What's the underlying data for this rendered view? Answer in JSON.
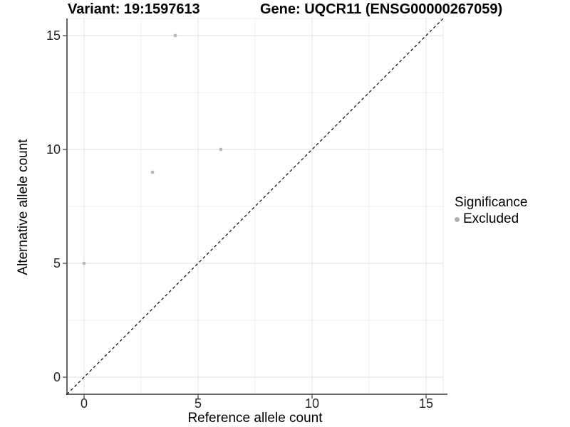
{
  "figure": {
    "title_left": "Variant: 19:1597613",
    "title_right": "Gene: UQCR11 (ENSG00000267059)"
  },
  "chart_data": {
    "type": "scatter",
    "xlabel": "Reference allele count",
    "ylabel": "Alternative allele count",
    "xlim": [
      -0.75,
      15.75
    ],
    "ylim": [
      -0.75,
      15.75
    ],
    "x_major_ticks": [
      0,
      5,
      10,
      15
    ],
    "y_major_ticks": [
      0,
      5,
      10,
      15
    ],
    "x_minor_gridlines": [
      2.5,
      7.5,
      12.5
    ],
    "y_minor_gridlines": [
      2.5,
      7.5,
      12.5
    ],
    "grid": "major-and-minor",
    "identity_line": {
      "style": "dashed",
      "slope": 1,
      "intercept": 0,
      "color": "#000000"
    },
    "series": [
      {
        "name": "Excluded",
        "marker": "circle",
        "color": "#b9b9b9",
        "points": [
          [
            0,
            5
          ],
          [
            3,
            9
          ],
          [
            4,
            15
          ],
          [
            6,
            10
          ]
        ]
      }
    ],
    "legend": {
      "title": "Significance",
      "position": "right",
      "items": [
        {
          "label": "Excluded",
          "color": "#b0b0b0"
        }
      ]
    }
  },
  "colors": {
    "background": "#ffffff",
    "grid_major": "#e2e2e2",
    "grid_minor": "#f0f0f0",
    "panel_border": "#ebebeb",
    "axis_line": "#333333",
    "tick_mark": "#333333",
    "tick_label": "#262626",
    "point": "#b9b9b9"
  }
}
